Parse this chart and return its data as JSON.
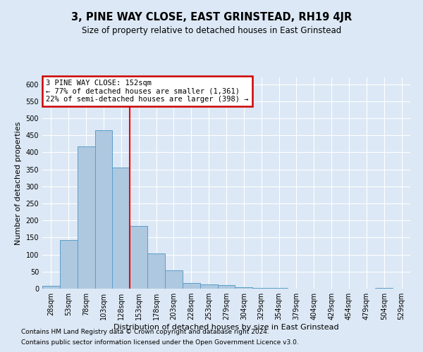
{
  "title": "3, PINE WAY CLOSE, EAST GRINSTEAD, RH19 4JR",
  "subtitle": "Size of property relative to detached houses in East Grinstead",
  "xlabel": "Distribution of detached houses by size in East Grinstead",
  "ylabel": "Number of detached properties",
  "footer_line1": "Contains HM Land Registry data © Crown copyright and database right 2024.",
  "footer_line2": "Contains public sector information licensed under the Open Government Licence v3.0.",
  "bar_labels": [
    "28sqm",
    "53sqm",
    "78sqm",
    "103sqm",
    "128sqm",
    "153sqm",
    "178sqm",
    "203sqm",
    "228sqm",
    "253sqm",
    "279sqm",
    "304sqm",
    "329sqm",
    "354sqm",
    "379sqm",
    "404sqm",
    "429sqm",
    "454sqm",
    "479sqm",
    "504sqm",
    "529sqm"
  ],
  "bar_values": [
    8,
    143,
    417,
    465,
    355,
    183,
    103,
    54,
    17,
    13,
    10,
    5,
    3,
    2,
    1,
    1,
    0,
    0,
    0,
    3,
    0
  ],
  "bar_color": "#aec8e0",
  "bar_edge_color": "#5a9ec9",
  "red_line_x": 4.5,
  "annotation_title": "3 PINE WAY CLOSE: 152sqm",
  "annotation_line1": "← 77% of detached houses are smaller (1,361)",
  "annotation_line2": "22% of semi-detached houses are larger (398) →",
  "annotation_box_color": "#ffffff",
  "annotation_box_edge_color": "#cc0000",
  "ylim": [
    0,
    620
  ],
  "yticks": [
    0,
    50,
    100,
    150,
    200,
    250,
    300,
    350,
    400,
    450,
    500,
    550,
    600
  ],
  "background_color": "#dce8f5",
  "plot_background_color": "#dce8f5",
  "title_fontsize": 10.5,
  "subtitle_fontsize": 8.5,
  "axis_label_fontsize": 8,
  "tick_fontsize": 7,
  "annotation_fontsize": 7.5,
  "footer_fontsize": 6.5
}
